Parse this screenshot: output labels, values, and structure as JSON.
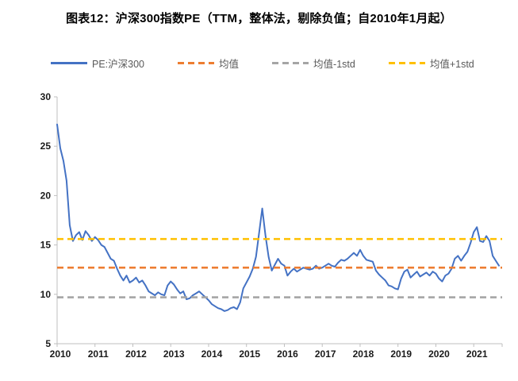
{
  "title": "图表12：沪深300指数PE（TTM，整体法，剔除负值；自2010年1月起）",
  "colors": {
    "pe_line": "#4472C4",
    "mean_line": "#ED7D31",
    "mean_minus_1std_line": "#A5A5A5",
    "mean_plus_1std_line": "#FFC000",
    "axis": "#BFBFBF",
    "tick_label": "#1a1a1a",
    "legend_text": "#595959"
  },
  "legend": [
    {
      "label": "PE:沪深300",
      "color": "#4472C4",
      "style": "solid"
    },
    {
      "label": "均值",
      "color": "#ED7D31",
      "style": "dashed"
    },
    {
      "label": "均值-1std",
      "color": "#A5A5A5",
      "style": "dashed"
    },
    {
      "label": "均值+1std",
      "color": "#FFC000",
      "style": "dashed"
    }
  ],
  "chart_data": {
    "type": "line",
    "title": "图表12：沪深300指数PE（TTM，整体法，剔除负值；自2010年1月起）",
    "xlim": [
      2010,
      2021.75
    ],
    "ylim": [
      5,
      30
    ],
    "y_ticks": [
      5,
      10,
      15,
      20,
      25,
      30
    ],
    "x_ticks": [
      2010,
      2011,
      2012,
      2013,
      2014,
      2015,
      2016,
      2017,
      2018,
      2019,
      2020,
      2021
    ],
    "grid": false,
    "legend_position": "top",
    "series": [
      {
        "name": "PE:沪深300",
        "type": "line",
        "color": "#4472C4",
        "x_start": 2010.0,
        "x_step": 0.08333,
        "sampling": "monthly",
        "values": [
          27.2,
          24.8,
          23.5,
          21.5,
          17.0,
          15.4,
          16.0,
          16.3,
          15.5,
          16.4,
          16.0,
          15.4,
          15.8,
          15.5,
          15.0,
          14.8,
          14.2,
          13.6,
          13.4,
          12.6,
          11.9,
          11.4,
          11.9,
          11.2,
          11.4,
          11.7,
          11.2,
          11.4,
          10.9,
          10.3,
          10.1,
          9.9,
          10.2,
          10.0,
          9.9,
          10.9,
          11.3,
          11.0,
          10.5,
          10.1,
          10.3,
          9.5,
          9.6,
          9.9,
          10.1,
          10.3,
          10.0,
          9.7,
          9.4,
          9.0,
          8.8,
          8.6,
          8.5,
          8.3,
          8.4,
          8.6,
          8.7,
          8.5,
          9.2,
          10.6,
          11.2,
          11.8,
          12.6,
          13.8,
          16.2,
          18.7,
          16.0,
          13.8,
          12.4,
          13.0,
          13.6,
          13.1,
          12.9,
          11.9,
          12.3,
          12.6,
          12.3,
          12.5,
          12.7,
          12.6,
          12.5,
          12.6,
          12.9,
          12.6,
          12.7,
          12.9,
          13.1,
          12.9,
          12.8,
          13.2,
          13.5,
          13.4,
          13.6,
          13.9,
          14.2,
          13.9,
          14.5,
          13.9,
          13.5,
          13.4,
          13.3,
          12.4,
          12.0,
          11.7,
          11.4,
          10.9,
          10.8,
          10.6,
          10.5,
          11.6,
          12.3,
          12.5,
          11.7,
          12.0,
          12.3,
          11.8,
          12.0,
          12.2,
          11.9,
          12.3,
          12.1,
          11.6,
          11.3,
          11.9,
          12.1,
          12.6,
          13.6,
          13.9,
          13.4,
          13.9,
          14.3,
          15.2,
          16.3,
          16.8,
          15.4,
          15.3,
          15.9,
          15.4,
          13.9,
          13.4,
          12.9
        ]
      },
      {
        "name": "均值",
        "type": "hline",
        "color": "#ED7D31",
        "value": 12.7
      },
      {
        "name": "均值-1std",
        "type": "hline",
        "color": "#A5A5A5",
        "value": 9.7
      },
      {
        "name": "均值+1std",
        "type": "hline",
        "color": "#FFC000",
        "value": 15.6
      }
    ]
  }
}
